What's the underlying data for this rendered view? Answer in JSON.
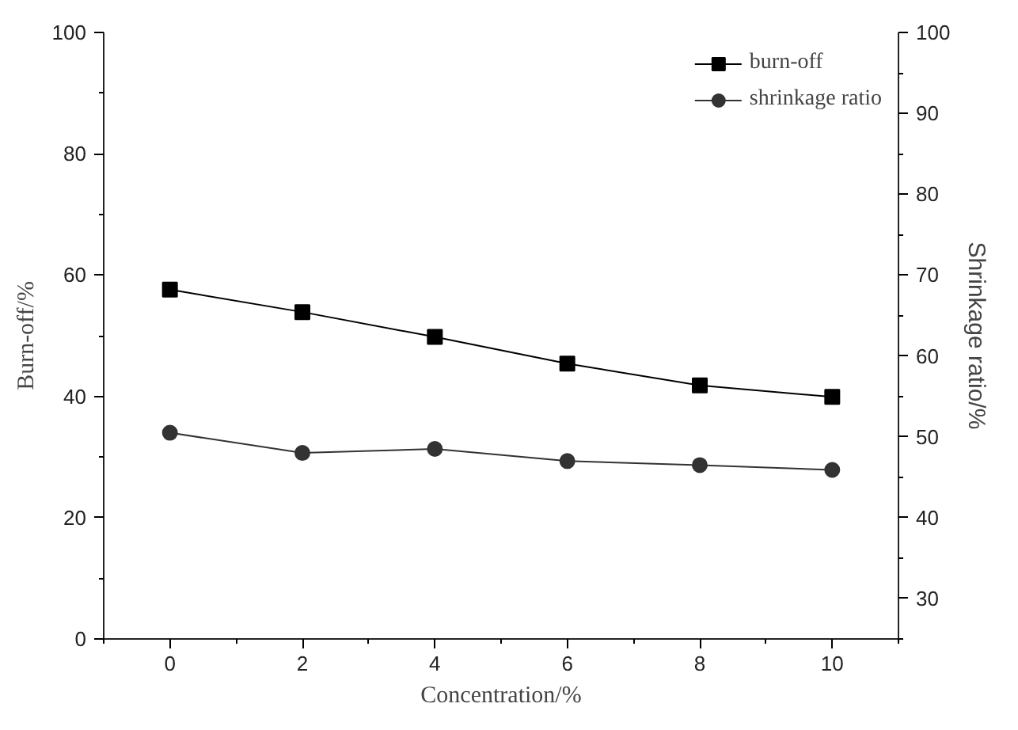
{
  "chart_data": {
    "type": "line",
    "xlabel": "Concentration/%",
    "ylabel": "Burn-off/%",
    "y2label": "Shrinkage ratio/%",
    "x": [
      0,
      2,
      4,
      6,
      8,
      10
    ],
    "series": [
      {
        "name": "burn-off",
        "color": "#000000",
        "marker": "square",
        "values": [
          57.6,
          53.9,
          49.8,
          45.4,
          41.8,
          39.9
        ]
      },
      {
        "name": "shrinkage ratio",
        "color": "#333333",
        "marker": "circle",
        "axis": "y2",
        "values": [
          50.5,
          48.0,
          48.5,
          47.0,
          46.5,
          45.9
        ]
      }
    ],
    "xlim": [
      -1,
      11
    ],
    "xticks": [
      0,
      2,
      4,
      6,
      8,
      10
    ],
    "ylim": [
      0,
      100
    ],
    "yticks": [
      0,
      20,
      40,
      60,
      80,
      100
    ],
    "y2lim": [
      25,
      100
    ],
    "y2ticks": [
      30,
      40,
      50,
      60,
      70,
      80,
      90,
      100
    ],
    "grid": false,
    "legend": "top right",
    "line_style": "solid"
  }
}
